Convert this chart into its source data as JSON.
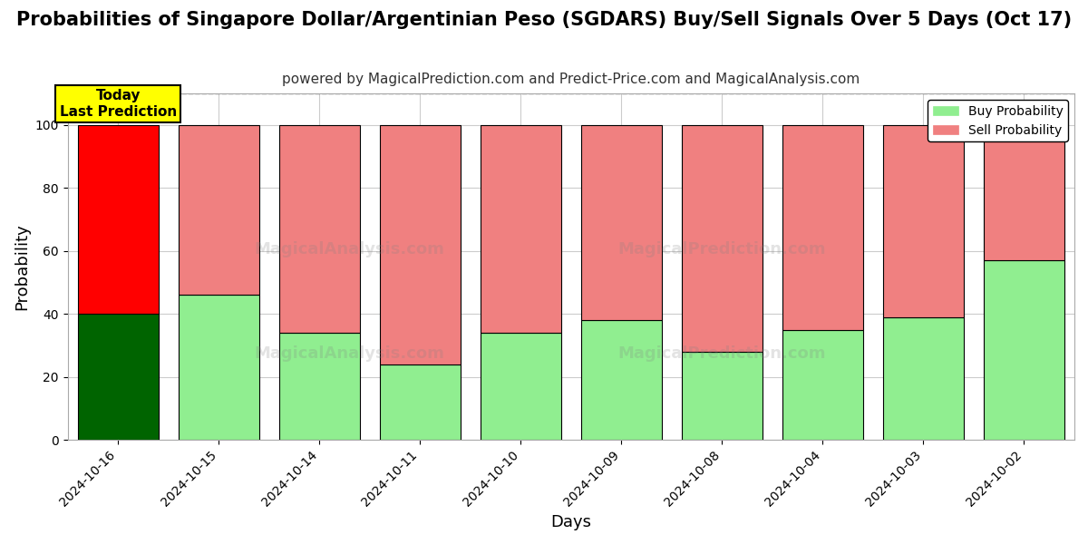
{
  "title": "Probabilities of Singapore Dollar/Argentinian Peso (SGDARS) Buy/Sell Signals Over 5 Days (Oct 17)",
  "subtitle": "powered by MagicalPrediction.com and Predict-Price.com and MagicalAnalysis.com",
  "xlabel": "Days",
  "ylabel": "Probability",
  "categories": [
    "2024-10-16",
    "2024-10-15",
    "2024-10-14",
    "2024-10-11",
    "2024-10-10",
    "2024-10-09",
    "2024-10-08",
    "2024-10-04",
    "2024-10-03",
    "2024-10-02"
  ],
  "buy_values": [
    40,
    46,
    34,
    24,
    34,
    38,
    28,
    35,
    39,
    57
  ],
  "sell_values": [
    60,
    54,
    66,
    76,
    66,
    62,
    72,
    65,
    61,
    43
  ],
  "today_bar_index": 0,
  "today_buy_color": "#006400",
  "today_sell_color": "#ff0000",
  "other_buy_color": "#90ee90",
  "other_sell_color": "#f08080",
  "bar_edge_color": "#000000",
  "ylim": [
    0,
    110
  ],
  "dashed_line_y": 110,
  "legend_buy_label": "Buy Probability",
  "legend_sell_label": "Sell Probability",
  "today_label": "Today\nLast Prediction",
  "background_color": "#ffffff",
  "grid_color": "#cccccc",
  "title_fontsize": 15,
  "subtitle_fontsize": 11,
  "axis_label_fontsize": 13,
  "tick_label_fontsize": 10
}
